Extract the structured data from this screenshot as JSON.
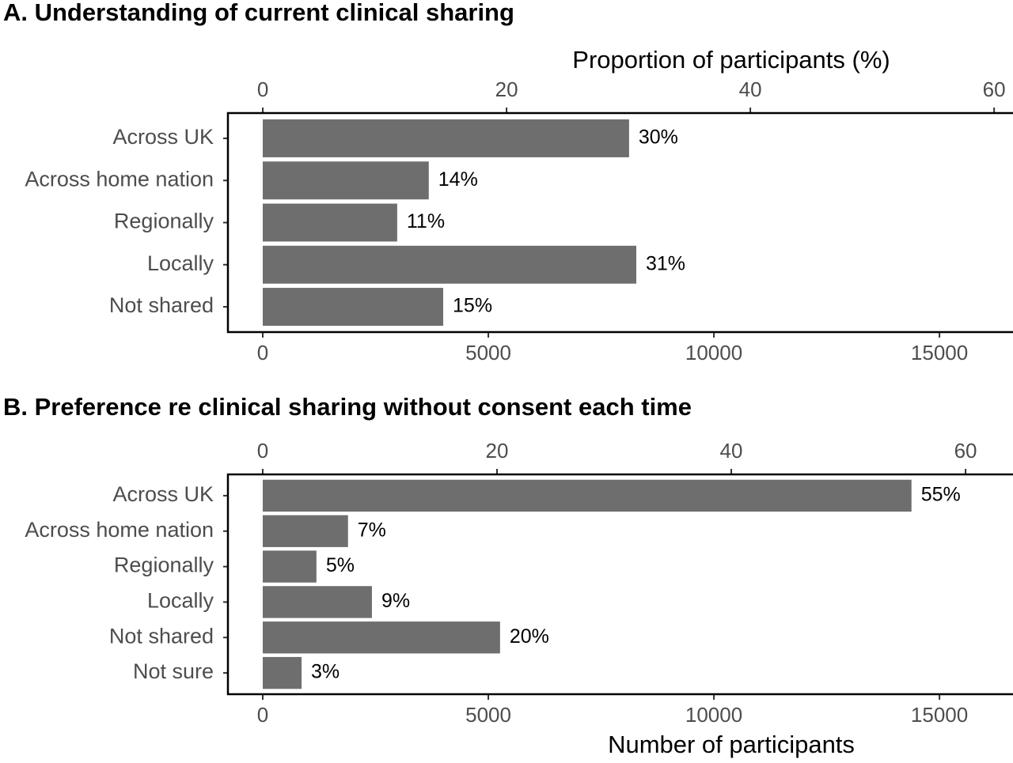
{
  "chart_data": [
    {
      "type": "bar",
      "orientation": "horizontal",
      "title": "A. Understanding of current clinical sharing",
      "x2label": "Proportion of participants (%)",
      "categories": [
        "Across UK",
        "Across home nation",
        "Regionally",
        "Locally",
        "Not shared"
      ],
      "values": [
        8120,
        3680,
        2980,
        8280,
        4000
      ],
      "value_labels": [
        "30%",
        "14%",
        "11%",
        "31%",
        "15%"
      ],
      "color": "#6e6e6e",
      "xlim": [
        -772,
        16630
      ],
      "xticks": [
        0,
        5000,
        10000,
        15000
      ],
      "x2lim": [
        -2.86,
        61.55
      ],
      "x2ticks": [
        0,
        20,
        40,
        60
      ]
    },
    {
      "type": "bar",
      "orientation": "horizontal",
      "title": "B. Preference re clinical sharing without consent each time",
      "xlabel": "Number of participants",
      "categories": [
        "Across UK",
        "Across home nation",
        "Regionally",
        "Locally",
        "Not shared",
        "Not sure"
      ],
      "values": [
        14380,
        1890,
        1190,
        2420,
        5260,
        860
      ],
      "value_labels": [
        "55%",
        "7%",
        "5%",
        "9%",
        "20%",
        "3%"
      ],
      "color": "#6e6e6e",
      "xlim": [
        -772,
        16630
      ],
      "xticks": [
        0,
        5000,
        10000,
        15000
      ],
      "x2lim": [
        -2.97,
        64.05
      ],
      "x2ticks": [
        0,
        20,
        40,
        60
      ]
    }
  ]
}
